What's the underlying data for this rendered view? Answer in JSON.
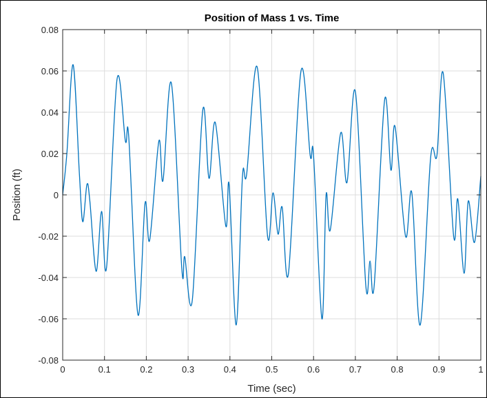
{
  "chart_data": {
    "type": "line",
    "title": "Position of Mass 1 vs. Time",
    "xlabel": "Time (sec)",
    "ylabel": "Position (ft)",
    "xlim": [
      0,
      1
    ],
    "ylim": [
      -0.08,
      0.08
    ],
    "x_ticks": [
      0,
      0.1,
      0.2,
      0.3,
      0.4,
      0.5,
      0.6,
      0.7,
      0.8,
      0.9,
      1
    ],
    "x_tick_labels": [
      "0",
      "0.1",
      "0.2",
      "0.3",
      "0.4",
      "0.5",
      "0.6",
      "0.7",
      "0.8",
      "0.9",
      "1"
    ],
    "y_ticks": [
      -0.08,
      -0.06,
      -0.04,
      -0.02,
      0,
      0.02,
      0.04,
      0.06,
      0.08
    ],
    "y_tick_labels": [
      "-0.08",
      "-0.06",
      "-0.04",
      "-0.02",
      "0",
      "0.02",
      "0.04",
      "0.06",
      "0.08"
    ],
    "grid": true,
    "series": [
      {
        "color": "#0072BD",
        "x": [
          0,
          0.01,
          0.025,
          0.04,
          0.048,
          0.058,
          0.065,
          0.08,
          0.093,
          0.105,
          0.13,
          0.15,
          0.158,
          0.18,
          0.197,
          0.208,
          0.23,
          0.24,
          0.26,
          0.285,
          0.292,
          0.31,
          0.335,
          0.35,
          0.365,
          0.39,
          0.398,
          0.415,
          0.43,
          0.44,
          0.465,
          0.49,
          0.503,
          0.515,
          0.525,
          0.54,
          0.57,
          0.592,
          0.6,
          0.62,
          0.63,
          0.64,
          0.665,
          0.68,
          0.7,
          0.725,
          0.735,
          0.745,
          0.77,
          0.785,
          0.795,
          0.82,
          0.835,
          0.855,
          0.88,
          0.895,
          0.91,
          0.935,
          0.945,
          0.96,
          0.97,
          0.985,
          1.0
        ],
        "y": [
          0.0,
          0.02,
          0.063,
          0.01,
          -0.013,
          0.005,
          -0.003,
          -0.037,
          -0.008,
          -0.035,
          0.056,
          0.026,
          0.028,
          -0.058,
          -0.004,
          -0.022,
          0.026,
          0.007,
          0.054,
          -0.036,
          -0.03,
          -0.051,
          0.041,
          0.008,
          0.035,
          -0.015,
          0.005,
          -0.063,
          0.009,
          0.01,
          0.062,
          -0.02,
          0.001,
          -0.019,
          -0.006,
          -0.038,
          0.06,
          0.019,
          0.019,
          -0.06,
          0.0,
          -0.017,
          0.03,
          0.006,
          0.05,
          -0.044,
          -0.032,
          -0.044,
          0.046,
          0.012,
          0.033,
          -0.02,
          0.001,
          -0.063,
          0.018,
          0.019,
          0.059,
          -0.02,
          -0.002,
          -0.038,
          -0.003,
          -0.023,
          0.009
        ]
      }
    ]
  }
}
